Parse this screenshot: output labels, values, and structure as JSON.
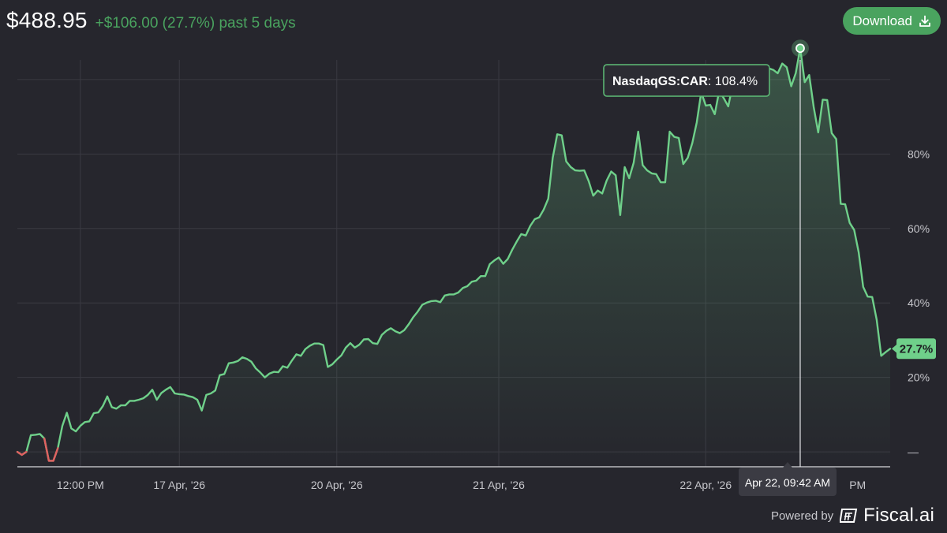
{
  "header": {
    "price": "$488.95",
    "change": "+$106.00 (27.7%) past 5 days"
  },
  "toolbar": {
    "download_label": "Download"
  },
  "tooltip": {
    "symbol": "NasdaqGS:CAR",
    "value_text": ": 108.4%",
    "date_label": "Apr 22, 09:42 AM"
  },
  "last_value_label": "27.7%",
  "footer": {
    "powered_by": "Powered by",
    "brand": "Fiscal.ai",
    "icon": "fiscal-logo-icon"
  },
  "colors": {
    "background": "#26262d",
    "line": "#6fd08a",
    "negative_line": "#e06060",
    "accent": "#4aa35f",
    "grid": "#3a3a42",
    "axis_text": "#c7c7cc"
  },
  "chart_data": {
    "type": "line",
    "title": "",
    "xlabel": "",
    "ylabel": "",
    "x_tick_labels": [
      "12:00 PM",
      "17 Apr, '26",
      "20 Apr, '26",
      "21 Apr, '26",
      "22 Apr, '26",
      "PM"
    ],
    "y_tick_labels": [
      "—",
      "20%",
      "40%",
      "60%",
      "80%"
    ],
    "y_ticks": [
      0,
      20,
      40,
      60,
      80
    ],
    "ylim": [
      -4,
      104
    ],
    "grid": true,
    "unit": "%",
    "last_value": 27.7,
    "tooltip_point": {
      "date": "Apr 22, 09:42 AM",
      "value": 108.4
    },
    "series": [
      {
        "name": "NasdaqGS:CAR",
        "values": [
          0,
          -0.8,
          0,
          4.5,
          4.6,
          4.8,
          3.6,
          -2.4,
          -2.4,
          1,
          7,
          10.5,
          6.3,
          5.5,
          7,
          8,
          8.2,
          10.4,
          10.6,
          12.3,
          14.9,
          12,
          11.6,
          12.5,
          12.5,
          13.7,
          13.7,
          14,
          14.4,
          15.3,
          16.7,
          14,
          15.8,
          16.7,
          17.4,
          15.7,
          15.5,
          15.4,
          15,
          14.7,
          14,
          11.1,
          15.3,
          15.7,
          16.5,
          20.6,
          20.9,
          23.8,
          24,
          24.4,
          25.4,
          25,
          24.2,
          22.4,
          21.3,
          20,
          21,
          21.5,
          21.4,
          23,
          22.6,
          24.5,
          26.2,
          25.8,
          27.6,
          28.5,
          29.1,
          29.1,
          28.7,
          22.8,
          23.5,
          24.8,
          25.9,
          28,
          29.2,
          28,
          28.8,
          30.2,
          30.3,
          29.2,
          29,
          31.4,
          32.5,
          33.2,
          32.4,
          31.9,
          32.7,
          34.3,
          36.2,
          37.7,
          39.5,
          40.1,
          40.5,
          40.6,
          40.2,
          42,
          42.3,
          42.3,
          42.8,
          44,
          44.5,
          45.7,
          46,
          47.2,
          47.2,
          50.4,
          51.4,
          52.2,
          50.5,
          51.8,
          54.3,
          56.5,
          58.5,
          58.1,
          60.7,
          62.5,
          63,
          65.1,
          68,
          79,
          85.3,
          85,
          78,
          76.5,
          75.6,
          75.5,
          75.6,
          72.7,
          68.8,
          70.2,
          69.4,
          72.9,
          75.3,
          74.3,
          63.6,
          76.5,
          73.5,
          77.7,
          86,
          77,
          75.6,
          74.8,
          74.6,
          72.4,
          72.4,
          86,
          84.6,
          84.3,
          77.3,
          79,
          82.9,
          88.5,
          96.6,
          93,
          93.2,
          90.7,
          97,
          95,
          92.8,
          98.7,
          98.6,
          99.3,
          102.7,
          102.2,
          102.7,
          103.7,
          102.1,
          103,
          102.6,
          101.7,
          104.3,
          103.3,
          98.2,
          101.7,
          108.4,
          99.3,
          101.2,
          92.6,
          85.8,
          94.6,
          94.5,
          85.6,
          84,
          66.6,
          66.5,
          61.5,
          59.6,
          53.6,
          44.3,
          41.7,
          41.6,
          35.5,
          25.8,
          26.8,
          27.7
        ]
      }
    ]
  }
}
